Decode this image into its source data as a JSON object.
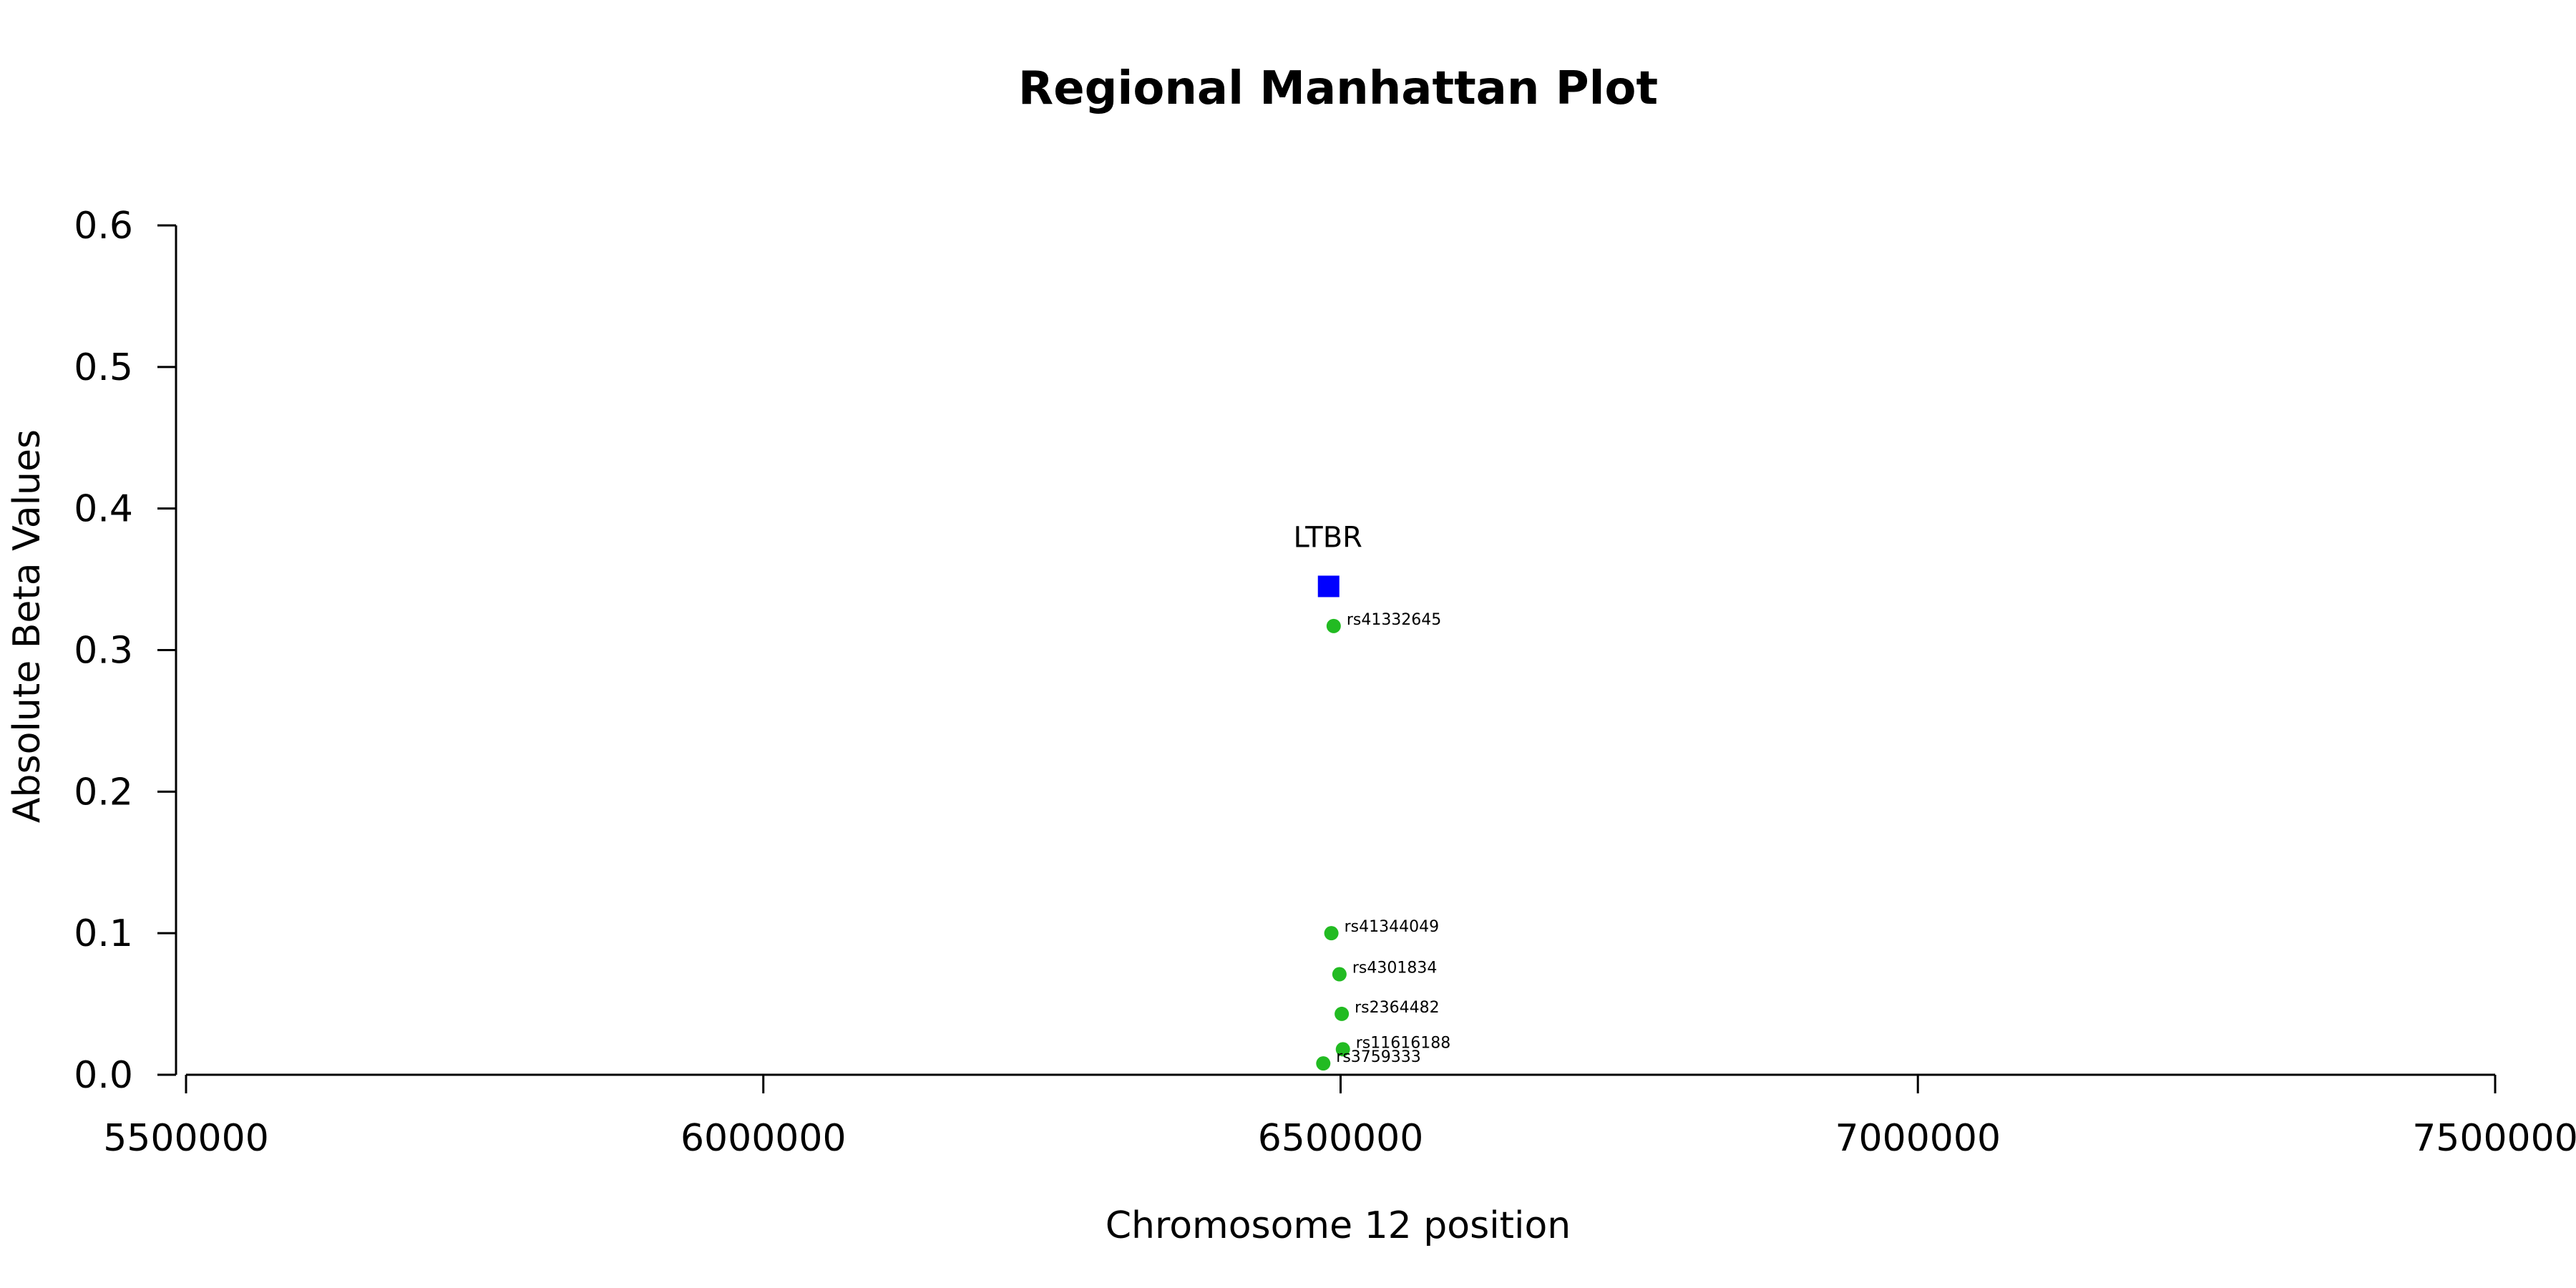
{
  "chart_data": {
    "type": "scatter",
    "title": "Regional Manhattan Plot",
    "xlabel": "Chromosome 12 position",
    "ylabel": "Absolute Beta Values",
    "xlim": [
      5500000,
      7500000
    ],
    "ylim": [
      0,
      0.6
    ],
    "x_ticks": [
      5500000,
      6000000,
      6500000,
      7000000,
      7500000
    ],
    "x_tick_labels": [
      "5500000",
      "6000000",
      "6500000",
      "7000000",
      "7500000"
    ],
    "y_ticks": [
      0.0,
      0.1,
      0.2,
      0.3,
      0.4,
      0.5,
      0.6
    ],
    "y_tick_labels": [
      "0.0",
      "0.1",
      "0.2",
      "0.3",
      "0.4",
      "0.5",
      "0.6"
    ],
    "grid": false,
    "colors": {
      "snp": "#22bb22",
      "gene": "#0000ff"
    },
    "gene": {
      "label": "LTBR",
      "x": 6489000,
      "y": 0.345
    },
    "snps": [
      {
        "label": "rs41332645",
        "x": 6494000,
        "y": 0.317
      },
      {
        "label": "rs41344049",
        "x": 6492000,
        "y": 0.1
      },
      {
        "label": "rs4301834",
        "x": 6499000,
        "y": 0.071
      },
      {
        "label": "rs2364482",
        "x": 6501000,
        "y": 0.043
      },
      {
        "label": "rs11616188",
        "x": 6502000,
        "y": 0.018
      },
      {
        "label": "rs3759333",
        "x": 6485000,
        "y": 0.008
      }
    ]
  }
}
